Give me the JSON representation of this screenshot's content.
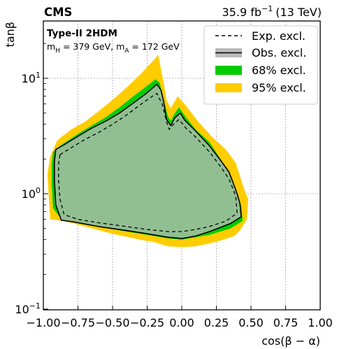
{
  "chart_data": {
    "type": "area",
    "experiment": "CMS",
    "luminosity": "35.9 fb",
    "luminosity_unit_exp": "−1",
    "energy": "(13 TeV)",
    "model": "Type-II 2HDM",
    "mass_point": "m_H = 379 GeV, m_A = 172 GeV",
    "mass_point_parts": {
      "mH_pre": "m",
      "mH_sub": "H",
      "mH_val": " = 379 GeV, m",
      "mA_sub": "A",
      "mA_val": " = 172 GeV"
    },
    "xlabel": "cos(β − α)",
    "ylabel": "tanβ",
    "xlim": [
      -1.0,
      1.0
    ],
    "ylim": [
      0.1,
      30
    ],
    "yscale": "log",
    "grid": true,
    "legend_position": "top-right",
    "x_ticks": [
      -1.0,
      -0.75,
      -0.5,
      -0.25,
      0.0,
      0.25,
      0.5,
      0.75,
      1.0
    ],
    "x_tick_labels": [
      "−1.00",
      "−0.75",
      "−0.50",
      "−0.25",
      "0.00",
      "0.25",
      "0.50",
      "0.75",
      "1.00"
    ],
    "y_ticks": [
      0.1,
      1,
      10
    ],
    "y_tick_labels": [
      {
        "base": "10",
        "exp": "−1"
      },
      {
        "base": "10",
        "exp": "0"
      },
      {
        "base": "10",
        "exp": "1"
      }
    ],
    "legend": [
      {
        "key": "exp",
        "label": "Exp. excl."
      },
      {
        "key": "obs",
        "label": "Obs. excl."
      },
      {
        "key": "band68",
        "label": "68% excl."
      },
      {
        "key": "band95",
        "label": "95% excl."
      }
    ],
    "colors": {
      "band95": "#ffcc00",
      "band68": "#00cc00",
      "obs_fill": "#bbbbbb",
      "obs_line": "#000000",
      "exp_line": "#000000"
    },
    "series": [
      {
        "name": "95% excl.",
        "key": "band95",
        "points": [
          [
            -0.95,
            2.1
          ],
          [
            -0.9,
            2.9
          ],
          [
            -0.8,
            3.6
          ],
          [
            -0.7,
            4.2
          ],
          [
            -0.6,
            5.2
          ],
          [
            -0.5,
            6.5
          ],
          [
            -0.4,
            8.3
          ],
          [
            -0.3,
            10.8
          ],
          [
            -0.2,
            14.5
          ],
          [
            -0.17,
            16.0
          ],
          [
            -0.13,
            9.0
          ],
          [
            -0.11,
            6.5
          ],
          [
            -0.08,
            5.5
          ],
          [
            -0.03,
            7.0
          ],
          [
            0.03,
            5.8
          ],
          [
            0.12,
            4.2
          ],
          [
            0.22,
            3.1
          ],
          [
            0.32,
            2.4
          ],
          [
            0.39,
            1.85
          ],
          [
            0.45,
            1.1
          ],
          [
            0.48,
            0.9
          ],
          [
            0.47,
            0.6
          ],
          [
            0.42,
            0.48
          ],
          [
            0.38,
            0.43
          ],
          [
            0.3,
            0.4
          ],
          [
            0.2,
            0.37
          ],
          [
            0.1,
            0.35
          ],
          [
            0.0,
            0.345
          ],
          [
            -0.1,
            0.35
          ],
          [
            -0.2,
            0.38
          ],
          [
            -0.3,
            0.4
          ],
          [
            -0.5,
            0.45
          ],
          [
            -0.7,
            0.52
          ],
          [
            -0.85,
            0.58
          ],
          [
            -0.95,
            0.6
          ],
          [
            -0.96,
            0.9
          ],
          [
            -0.97,
            1.5
          ]
        ]
      },
      {
        "name": "68% excl.",
        "key": "band68",
        "points": [
          [
            -0.93,
            2.3
          ],
          [
            -0.86,
            2.7
          ],
          [
            -0.75,
            3.3
          ],
          [
            -0.65,
            3.9
          ],
          [
            -0.55,
            4.6
          ],
          [
            -0.45,
            5.6
          ],
          [
            -0.35,
            7.0
          ],
          [
            -0.25,
            8.6
          ],
          [
            -0.19,
            9.8
          ],
          [
            -0.16,
            9.2
          ],
          [
            -0.13,
            6.4
          ],
          [
            -0.1,
            4.7
          ],
          [
            -0.08,
            4.3
          ],
          [
            -0.05,
            5.0
          ],
          [
            -0.02,
            5.6
          ],
          [
            0.03,
            4.6
          ],
          [
            0.1,
            3.6
          ],
          [
            0.2,
            2.8
          ],
          [
            0.28,
            2.0
          ],
          [
            0.36,
            1.4
          ],
          [
            0.4,
            1.0
          ],
          [
            0.43,
            0.78
          ],
          [
            0.44,
            0.58
          ],
          [
            0.35,
            0.5
          ],
          [
            0.2,
            0.44
          ],
          [
            0.1,
            0.42
          ],
          [
            0.0,
            0.4
          ],
          [
            -0.1,
            0.41
          ],
          [
            -0.25,
            0.44
          ],
          [
            -0.4,
            0.47
          ],
          [
            -0.6,
            0.52
          ],
          [
            -0.78,
            0.58
          ],
          [
            -0.87,
            0.6
          ],
          [
            -0.93,
            0.75
          ],
          [
            -0.94,
            1.2
          ],
          [
            -0.94,
            1.8
          ]
        ]
      },
      {
        "name": "Obs. excl.",
        "key": "obs",
        "points": [
          [
            -0.91,
            2.42
          ],
          [
            -0.85,
            2.66
          ],
          [
            -0.75,
            3.15
          ],
          [
            -0.65,
            3.7
          ],
          [
            -0.55,
            4.25
          ],
          [
            -0.45,
            5.0
          ],
          [
            -0.35,
            6.1
          ],
          [
            -0.25,
            7.5
          ],
          [
            -0.18,
            8.9
          ],
          [
            -0.15,
            7.9
          ],
          [
            -0.13,
            6.2
          ],
          [
            -0.11,
            4.4
          ],
          [
            -0.08,
            3.9
          ],
          [
            -0.05,
            4.55
          ],
          [
            -0.01,
            5.0
          ],
          [
            0.02,
            4.35
          ],
          [
            0.1,
            3.5
          ],
          [
            0.2,
            2.6
          ],
          [
            0.28,
            1.95
          ],
          [
            0.34,
            1.55
          ],
          [
            0.37,
            1.25
          ],
          [
            0.4,
            1.0
          ],
          [
            0.42,
            0.82
          ],
          [
            0.43,
            0.63
          ],
          [
            0.35,
            0.55
          ],
          [
            0.2,
            0.47
          ],
          [
            0.1,
            0.43
          ],
          [
            0.0,
            0.41
          ],
          [
            -0.1,
            0.42
          ],
          [
            -0.25,
            0.45
          ],
          [
            -0.4,
            0.48
          ],
          [
            -0.6,
            0.52
          ],
          [
            -0.78,
            0.57
          ],
          [
            -0.87,
            0.59
          ],
          [
            -0.91,
            0.8
          ],
          [
            -0.92,
            1.3
          ],
          [
            -0.92,
            1.9
          ]
        ]
      },
      {
        "name": "Exp. excl.",
        "key": "exp",
        "points": [
          [
            -0.88,
            2.18
          ],
          [
            -0.8,
            2.5
          ],
          [
            -0.7,
            2.95
          ],
          [
            -0.6,
            3.4
          ],
          [
            -0.5,
            4.0
          ],
          [
            -0.4,
            4.8
          ],
          [
            -0.3,
            5.9
          ],
          [
            -0.22,
            6.9
          ],
          [
            -0.18,
            7.4
          ],
          [
            -0.14,
            5.9
          ],
          [
            -0.11,
            4.2
          ],
          [
            -0.09,
            3.6
          ],
          [
            -0.06,
            4.0
          ],
          [
            -0.02,
            4.4
          ],
          [
            0.03,
            3.7
          ],
          [
            0.1,
            3.1
          ],
          [
            0.2,
            2.3
          ],
          [
            0.28,
            1.72
          ],
          [
            0.34,
            1.35
          ],
          [
            0.37,
            1.1
          ],
          [
            0.39,
            0.95
          ],
          [
            0.4,
            0.68
          ],
          [
            0.32,
            0.58
          ],
          [
            0.2,
            0.52
          ],
          [
            0.1,
            0.49
          ],
          [
            0.0,
            0.47
          ],
          [
            -0.1,
            0.47
          ],
          [
            -0.25,
            0.49
          ],
          [
            -0.4,
            0.52
          ],
          [
            -0.6,
            0.56
          ],
          [
            -0.75,
            0.6
          ],
          [
            -0.85,
            0.66
          ],
          [
            -0.88,
            0.9
          ],
          [
            -0.89,
            1.3
          ],
          [
            -0.89,
            1.8
          ]
        ]
      }
    ]
  }
}
